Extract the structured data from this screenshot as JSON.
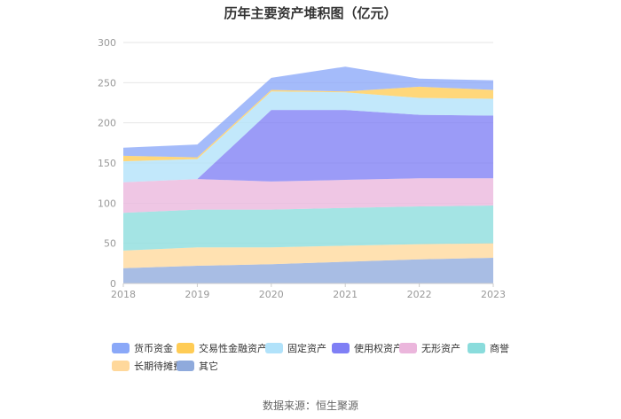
{
  "chart_data": {
    "type": "area",
    "stacked": true,
    "title": "历年主要资产堆积图（亿元）",
    "x": [
      "2018",
      "2019",
      "2020",
      "2021",
      "2022",
      "2023"
    ],
    "ylim": [
      0,
      300
    ],
    "yticks": [
      0,
      50,
      100,
      150,
      200,
      250,
      300
    ],
    "grid": true,
    "legend_position": "bottom",
    "series": [
      {
        "name": "其它",
        "color": "#8faadc",
        "values": [
          19,
          22,
          24,
          27,
          30,
          32
        ]
      },
      {
        "name": "长期待摊费用",
        "color": "#ffd89b",
        "values": [
          22,
          23,
          21,
          20,
          19,
          18
        ]
      },
      {
        "name": "商誉",
        "color": "#8adcdc",
        "values": [
          47,
          47,
          47,
          47,
          47,
          47
        ]
      },
      {
        "name": "无形资产",
        "color": "#ebb6dc",
        "values": [
          38,
          38,
          35,
          35,
          35,
          34
        ]
      },
      {
        "name": "使用权资产",
        "color": "#7f7ff5",
        "values": [
          0,
          0,
          89,
          87,
          79,
          78
        ]
      },
      {
        "name": "固定资产",
        "color": "#b1e2fa",
        "values": [
          26,
          25,
          23,
          22,
          21,
          21
        ]
      },
      {
        "name": "交易性金融资产",
        "color": "#ffcc55",
        "values": [
          7,
          2,
          2,
          1,
          14,
          11
        ]
      },
      {
        "name": "货币资金",
        "color": "#8aa8f8",
        "values": [
          10,
          16,
          15,
          31,
          10,
          12
        ]
      }
    ]
  },
  "legend_order": [
    "货币资金",
    "交易性金融资产",
    "固定资产",
    "使用权资产",
    "无形资产",
    "商誉",
    "长期待摊费用",
    "其它"
  ],
  "source": "数据来源：恒生聚源"
}
